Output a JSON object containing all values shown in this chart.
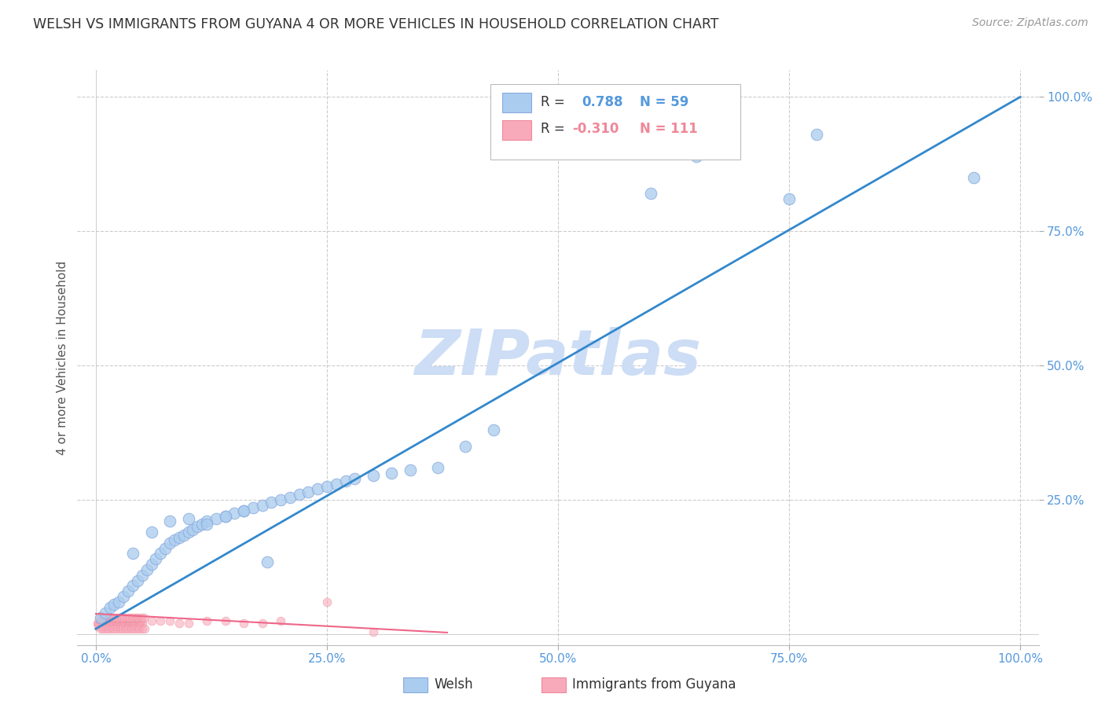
{
  "title": "WELSH VS IMMIGRANTS FROM GUYANA 4 OR MORE VEHICLES IN HOUSEHOLD CORRELATION CHART",
  "source": "Source: ZipAtlas.com",
  "ylabel": "4 or more Vehicles in Household",
  "xlim": [
    -0.02,
    1.02
  ],
  "ylim": [
    -0.02,
    1.05
  ],
  "xtick_vals": [
    0.0,
    0.25,
    0.5,
    0.75,
    1.0
  ],
  "xtick_labels": [
    "0.0%",
    "25.0%",
    "50.0%",
    "75.0%",
    "100.0%"
  ],
  "ytick_vals": [
    0.25,
    0.5,
    0.75,
    1.0
  ],
  "ytick_labels": [
    "25.0%",
    "50.0%",
    "75.0%",
    "100.0%"
  ],
  "welsh_color": "#aaccee",
  "welsh_edge_color": "#88aadd",
  "guyana_color": "#f8aabb",
  "guyana_edge_color": "#ee8899",
  "welsh_line_color": "#3388cc",
  "guyana_line_color": "#ee6688",
  "watermark_text": "ZIPatlas",
  "watermark_color": "#ccddf5",
  "background_color": "#ffffff",
  "grid_color": "#cccccc",
  "tick_color": "#5599dd",
  "title_color": "#333333",
  "ylabel_color": "#555555",
  "legend_r1": "R =  0.788",
  "legend_n1": "N = 59",
  "legend_r2": "R = -0.310",
  "legend_n2": "N = 111",
  "welsh_scatter_x": [
    0.005,
    0.01,
    0.015,
    0.02,
    0.025,
    0.03,
    0.035,
    0.04,
    0.045,
    0.05,
    0.055,
    0.06,
    0.065,
    0.07,
    0.075,
    0.08,
    0.085,
    0.09,
    0.095,
    0.1,
    0.105,
    0.11,
    0.115,
    0.12,
    0.13,
    0.14,
    0.15,
    0.16,
    0.17,
    0.18,
    0.19,
    0.2,
    0.21,
    0.22,
    0.23,
    0.24,
    0.25,
    0.26,
    0.27,
    0.28,
    0.3,
    0.32,
    0.34,
    0.37,
    0.4,
    0.43,
    0.6,
    0.65,
    0.75,
    0.78,
    0.95,
    0.04,
    0.06,
    0.08,
    0.1,
    0.12,
    0.14,
    0.16,
    0.185
  ],
  "welsh_scatter_y": [
    0.03,
    0.04,
    0.05,
    0.055,
    0.06,
    0.07,
    0.08,
    0.09,
    0.1,
    0.11,
    0.12,
    0.13,
    0.14,
    0.15,
    0.16,
    0.17,
    0.175,
    0.18,
    0.185,
    0.19,
    0.195,
    0.2,
    0.205,
    0.21,
    0.215,
    0.22,
    0.225,
    0.23,
    0.235,
    0.24,
    0.245,
    0.25,
    0.255,
    0.26,
    0.265,
    0.27,
    0.275,
    0.28,
    0.285,
    0.29,
    0.295,
    0.3,
    0.305,
    0.31,
    0.35,
    0.38,
    0.82,
    0.89,
    0.81,
    0.93,
    0.85,
    0.15,
    0.19,
    0.21,
    0.215,
    0.205,
    0.22,
    0.23,
    0.135
  ],
  "guyana_scatter_x": [
    0.002,
    0.003,
    0.004,
    0.005,
    0.006,
    0.007,
    0.008,
    0.009,
    0.01,
    0.011,
    0.012,
    0.013,
    0.014,
    0.015,
    0.016,
    0.017,
    0.018,
    0.019,
    0.02,
    0.021,
    0.022,
    0.023,
    0.024,
    0.025,
    0.026,
    0.027,
    0.028,
    0.029,
    0.03,
    0.031,
    0.032,
    0.033,
    0.034,
    0.035,
    0.036,
    0.037,
    0.038,
    0.039,
    0.04,
    0.041,
    0.042,
    0.043,
    0.044,
    0.045,
    0.046,
    0.047,
    0.048,
    0.049,
    0.05,
    0.003,
    0.006,
    0.009,
    0.012,
    0.015,
    0.018,
    0.021,
    0.024,
    0.027,
    0.03,
    0.033,
    0.036,
    0.039,
    0.042,
    0.045,
    0.048,
    0.004,
    0.007,
    0.01,
    0.013,
    0.016,
    0.019,
    0.022,
    0.025,
    0.028,
    0.031,
    0.034,
    0.037,
    0.04,
    0.043,
    0.046,
    0.049,
    0.052,
    0.005,
    0.008,
    0.011,
    0.014,
    0.017,
    0.02,
    0.023,
    0.026,
    0.029,
    0.032,
    0.035,
    0.038,
    0.041,
    0.044,
    0.047,
    0.05,
    0.053,
    0.06,
    0.07,
    0.08,
    0.09,
    0.1,
    0.12,
    0.14,
    0.16,
    0.18,
    0.2,
    0.25,
    0.3
  ],
  "guyana_scatter_y": [
    0.02,
    0.02,
    0.02,
    0.025,
    0.025,
    0.025,
    0.025,
    0.025,
    0.02,
    0.025,
    0.025,
    0.025,
    0.025,
    0.025,
    0.025,
    0.025,
    0.025,
    0.025,
    0.02,
    0.025,
    0.02,
    0.025,
    0.02,
    0.025,
    0.02,
    0.025,
    0.02,
    0.025,
    0.02,
    0.025,
    0.02,
    0.025,
    0.02,
    0.025,
    0.02,
    0.025,
    0.02,
    0.025,
    0.02,
    0.025,
    0.02,
    0.025,
    0.02,
    0.025,
    0.02,
    0.025,
    0.02,
    0.025,
    0.02,
    0.015,
    0.015,
    0.015,
    0.015,
    0.015,
    0.015,
    0.015,
    0.015,
    0.015,
    0.015,
    0.015,
    0.015,
    0.015,
    0.015,
    0.015,
    0.015,
    0.03,
    0.03,
    0.03,
    0.03,
    0.03,
    0.03,
    0.03,
    0.03,
    0.03,
    0.03,
    0.03,
    0.03,
    0.03,
    0.03,
    0.03,
    0.03,
    0.03,
    0.01,
    0.01,
    0.01,
    0.01,
    0.01,
    0.01,
    0.01,
    0.01,
    0.01,
    0.01,
    0.01,
    0.01,
    0.01,
    0.01,
    0.01,
    0.01,
    0.01,
    0.025,
    0.025,
    0.025,
    0.02,
    0.02,
    0.025,
    0.025,
    0.02,
    0.02,
    0.025,
    0.06,
    0.005
  ],
  "welsh_line_x": [
    0.0,
    1.0
  ],
  "welsh_line_y": [
    0.01,
    1.0
  ],
  "guyana_line_x": [
    0.0,
    0.38
  ],
  "guyana_line_y": [
    0.038,
    0.003
  ]
}
